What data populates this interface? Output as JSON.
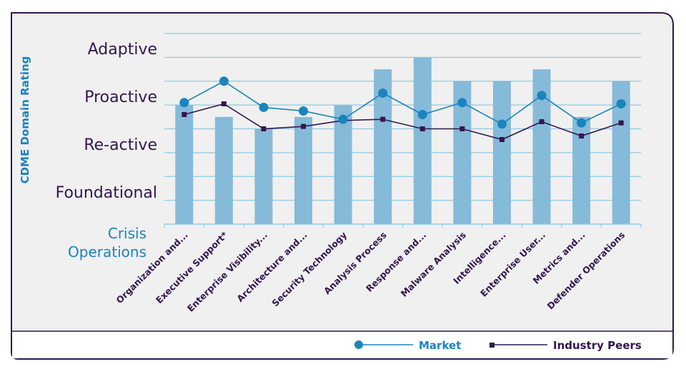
{
  "chart_data": {
    "type": "bar",
    "title": "",
    "ylabel": "CDME Domain Rating",
    "y_levels": [
      "Crisis Operations",
      "Foundational",
      "Re-active",
      "Proactive",
      "Adaptive"
    ],
    "ylim": [
      0,
      8
    ],
    "categories": [
      "Organization and...",
      "Executive Support*",
      "Enterprise Visibility...",
      "Architecture and...",
      "Security Technology",
      "Analysis Process",
      "Response and...",
      "Malware Analysis",
      "Intelligence...",
      "Enterprise User...",
      "Metrics and...",
      "Defender Operations"
    ],
    "bars": [
      5.0,
      4.5,
      4.0,
      4.5,
      5.0,
      6.5,
      7.0,
      6.0,
      6.0,
      6.5,
      4.5,
      6.0
    ],
    "series": [
      {
        "name": "Market",
        "values": [
          5.1,
          6.0,
          4.9,
          4.75,
          4.4,
          5.5,
          4.6,
          5.1,
          4.2,
          5.4,
          4.25,
          5.05
        ]
      },
      {
        "name": "Industry Peers",
        "values": [
          4.6,
          5.05,
          4.0,
          4.1,
          4.35,
          4.4,
          4.0,
          4.0,
          3.55,
          4.3,
          3.7,
          4.25
        ]
      }
    ],
    "legend": "bottom-right",
    "grid": true,
    "colors": {
      "bar": "#86bad9",
      "market": "#1a84bf",
      "peers": "#33174f",
      "level_text": "#33174f",
      "ylabel_text": "#1a84bf",
      "panel_bg": "#f0f0f0",
      "gridline": "#8ccbe6",
      "border": "#33174f"
    }
  }
}
